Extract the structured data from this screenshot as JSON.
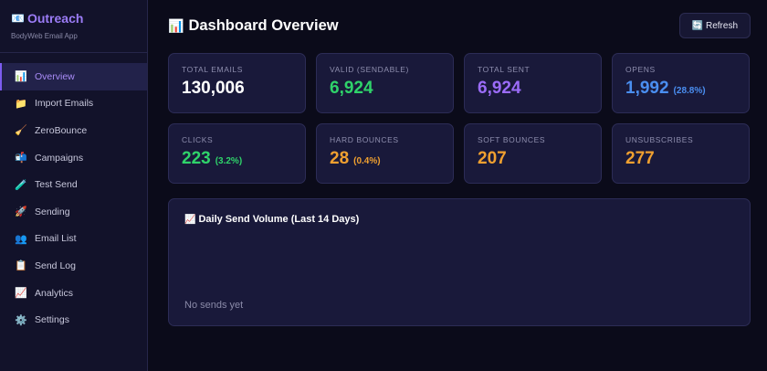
{
  "brand": {
    "icon": "📧",
    "title": "Outreach",
    "subtitle": "BodyWeb Email App"
  },
  "sidebar": {
    "items": [
      {
        "icon": "📊",
        "icon_name": "bar-chart-icon",
        "label": "Overview",
        "active": true
      },
      {
        "icon": "📁",
        "icon_name": "folder-icon",
        "label": "Import Emails"
      },
      {
        "icon": "🧹",
        "icon_name": "broom-icon",
        "label": "ZeroBounce"
      },
      {
        "icon": "📬",
        "icon_name": "mailbox-icon",
        "label": "Campaigns"
      },
      {
        "icon": "🧪",
        "icon_name": "test-tube-icon",
        "label": "Test Send"
      },
      {
        "icon": "🚀",
        "icon_name": "rocket-icon",
        "label": "Sending"
      },
      {
        "icon": "👥",
        "icon_name": "users-icon",
        "label": "Email List"
      },
      {
        "icon": "📋",
        "icon_name": "clipboard-icon",
        "label": "Send Log"
      },
      {
        "icon": "📈",
        "icon_name": "line-chart-icon",
        "label": "Analytics"
      },
      {
        "icon": "⚙️",
        "icon_name": "gear-icon",
        "label": "Settings"
      }
    ]
  },
  "header": {
    "icon": "📊",
    "title": "Dashboard Overview",
    "refresh_icon": "🔄",
    "refresh_label": "Refresh"
  },
  "stats": [
    {
      "label": "TOTAL EMAILS",
      "value": "130,006",
      "pct": "",
      "color": "#ffffff"
    },
    {
      "label": "VALID (SENDABLE)",
      "value": "6,924",
      "pct": "",
      "color": "#2fd36a"
    },
    {
      "label": "TOTAL SENT",
      "value": "6,924",
      "pct": "",
      "color": "#9b6cf8"
    },
    {
      "label": "OPENS",
      "value": "1,992",
      "pct": "(28.8%)",
      "color": "#4a8ef0"
    },
    {
      "label": "CLICKS",
      "value": "223",
      "pct": "(3.2%)",
      "color": "#2fd36a"
    },
    {
      "label": "HARD BOUNCES",
      "value": "28",
      "pct": "(0.4%)",
      "color": "#f0a030"
    },
    {
      "label": "SOFT BOUNCES",
      "value": "207",
      "pct": "",
      "color": "#f0a030"
    },
    {
      "label": "UNSUBSCRIBES",
      "value": "277",
      "pct": "",
      "color": "#f0a030"
    }
  ],
  "chart": {
    "icon": "📈",
    "title": "Daily Send Volume (Last 14 Days)",
    "empty_text": "No sends yet"
  }
}
